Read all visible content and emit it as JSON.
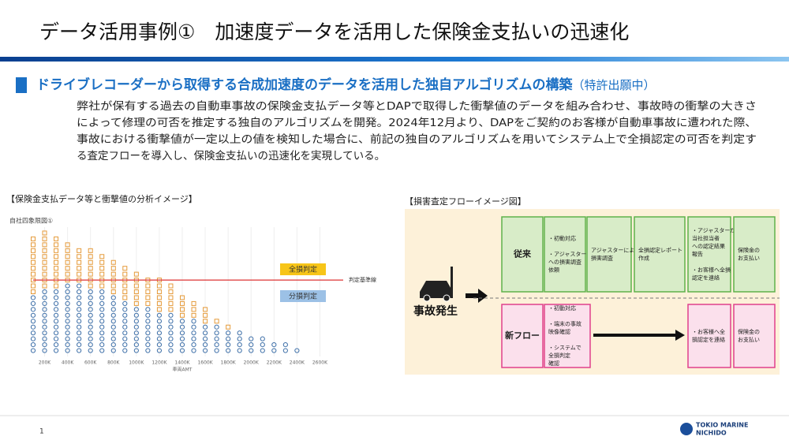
{
  "header": {
    "title": "データ活用事例①　加速度データを活用した保険金支払いの迅速化"
  },
  "section": {
    "heading": "ドライブレコーダーから取得する合成加速度のデータを活用した独自アルゴリズムの構築",
    "note": "（特許出願中）",
    "body": [
      "弊社が保有する過去の自動車事故の保険金支払データ等とDAPで取得した衝撃値のデータを組み合わせ、事故時の衝撃の大きさ",
      "によって修理の可否を推定する独自のアルゴリズムを開発。2024年12月より、DAPをご契約のお客様が自動車事故に遭われた際、",
      "事故における衝撃値が一定以上の値を検知した場合に、前記の独自のアルゴリズムを用いてシステム上で全損認定の可否を判定す",
      "る査定フローを導入し、保険金支払いの迅速化を実現している。"
    ]
  },
  "analysis_image": {
    "caption": "【保険金支払データ等と衝撃値の分析イメージ】",
    "title": "自社四象限図①",
    "x_label": "車両AMT",
    "xlim": [
      100,
      2700
    ],
    "ylim": [
      0,
      22
    ],
    "xticks": [
      {
        "value": 200,
        "label": "200K"
      },
      {
        "value": 400,
        "label": "400K"
      },
      {
        "value": 600,
        "label": "600K"
      },
      {
        "value": 800,
        "label": "800K"
      },
      {
        "value": 1000,
        "label": "1000K"
      },
      {
        "value": 1200,
        "label": "1200K"
      },
      {
        "value": 1400,
        "label": "1400K"
      },
      {
        "value": 1600,
        "label": "1600K"
      },
      {
        "value": 1800,
        "label": "1800K"
      },
      {
        "value": 2000,
        "label": "2000K"
      },
      {
        "value": 2200,
        "label": "2200K"
      },
      {
        "value": 2400,
        "label": "2400K"
      },
      {
        "value": 2600,
        "label": "2600K"
      }
    ],
    "columns": [
      [
        100,
        10,
        20
      ],
      [
        200,
        11,
        21
      ],
      [
        300,
        11,
        20
      ],
      [
        400,
        12,
        19
      ],
      [
        500,
        12,
        18
      ],
      [
        600,
        11,
        18
      ],
      [
        700,
        11,
        17
      ],
      [
        800,
        10,
        16
      ],
      [
        900,
        9,
        15
      ],
      [
        1000,
        8,
        14
      ],
      [
        1100,
        8,
        13
      ],
      [
        1200,
        7,
        13
      ],
      [
        1300,
        7,
        12
      ],
      [
        1400,
        6,
        10
      ],
      [
        1500,
        6,
        9
      ],
      [
        1600,
        5,
        8
      ],
      [
        1700,
        5,
        6
      ],
      [
        1800,
        4,
        5
      ],
      [
        1900,
        4,
        4
      ],
      [
        2000,
        3,
        3
      ],
      [
        2100,
        3,
        3
      ],
      [
        2200,
        2,
        2
      ],
      [
        2300,
        2,
        2
      ],
      [
        2400,
        1,
        1
      ]
    ],
    "threshold": 13,
    "threshold_label": "判定基準線",
    "total_loss_label": "全損判定",
    "partial_loss_label": "分損判定"
  },
  "flow": {
    "caption": "【損害査定フローイメージ図】",
    "event": "事故発生",
    "old": {
      "label": "従来",
      "steps": [
        [
          "・初動対応",
          "",
          "・アジャスター",
          "への損害調査",
          "依頼"
        ],
        [
          "アジャスターによる",
          "損害調査"
        ],
        [
          "全損認定レポート",
          "作成"
        ],
        [
          "・アジャスターから",
          "当社担当者",
          "への認定結果",
          "報告",
          "",
          "・お客様へ全損",
          "認定を連絡"
        ],
        [
          "保険金の",
          "お支払い"
        ]
      ]
    },
    "new": {
      "label": "新フロー",
      "steps": [
        [
          "・初動対応",
          "",
          "・端末の事故",
          "映像確認",
          "",
          "・システムで",
          "全損判定",
          "確認"
        ],
        [
          "・お客様へ全",
          "損認定を連絡"
        ],
        [
          "保険金の",
          "お支払い"
        ]
      ]
    }
  },
  "footer": {
    "page": "1",
    "logo": [
      "TOKIO MARINE",
      "NICHIDO"
    ]
  }
}
